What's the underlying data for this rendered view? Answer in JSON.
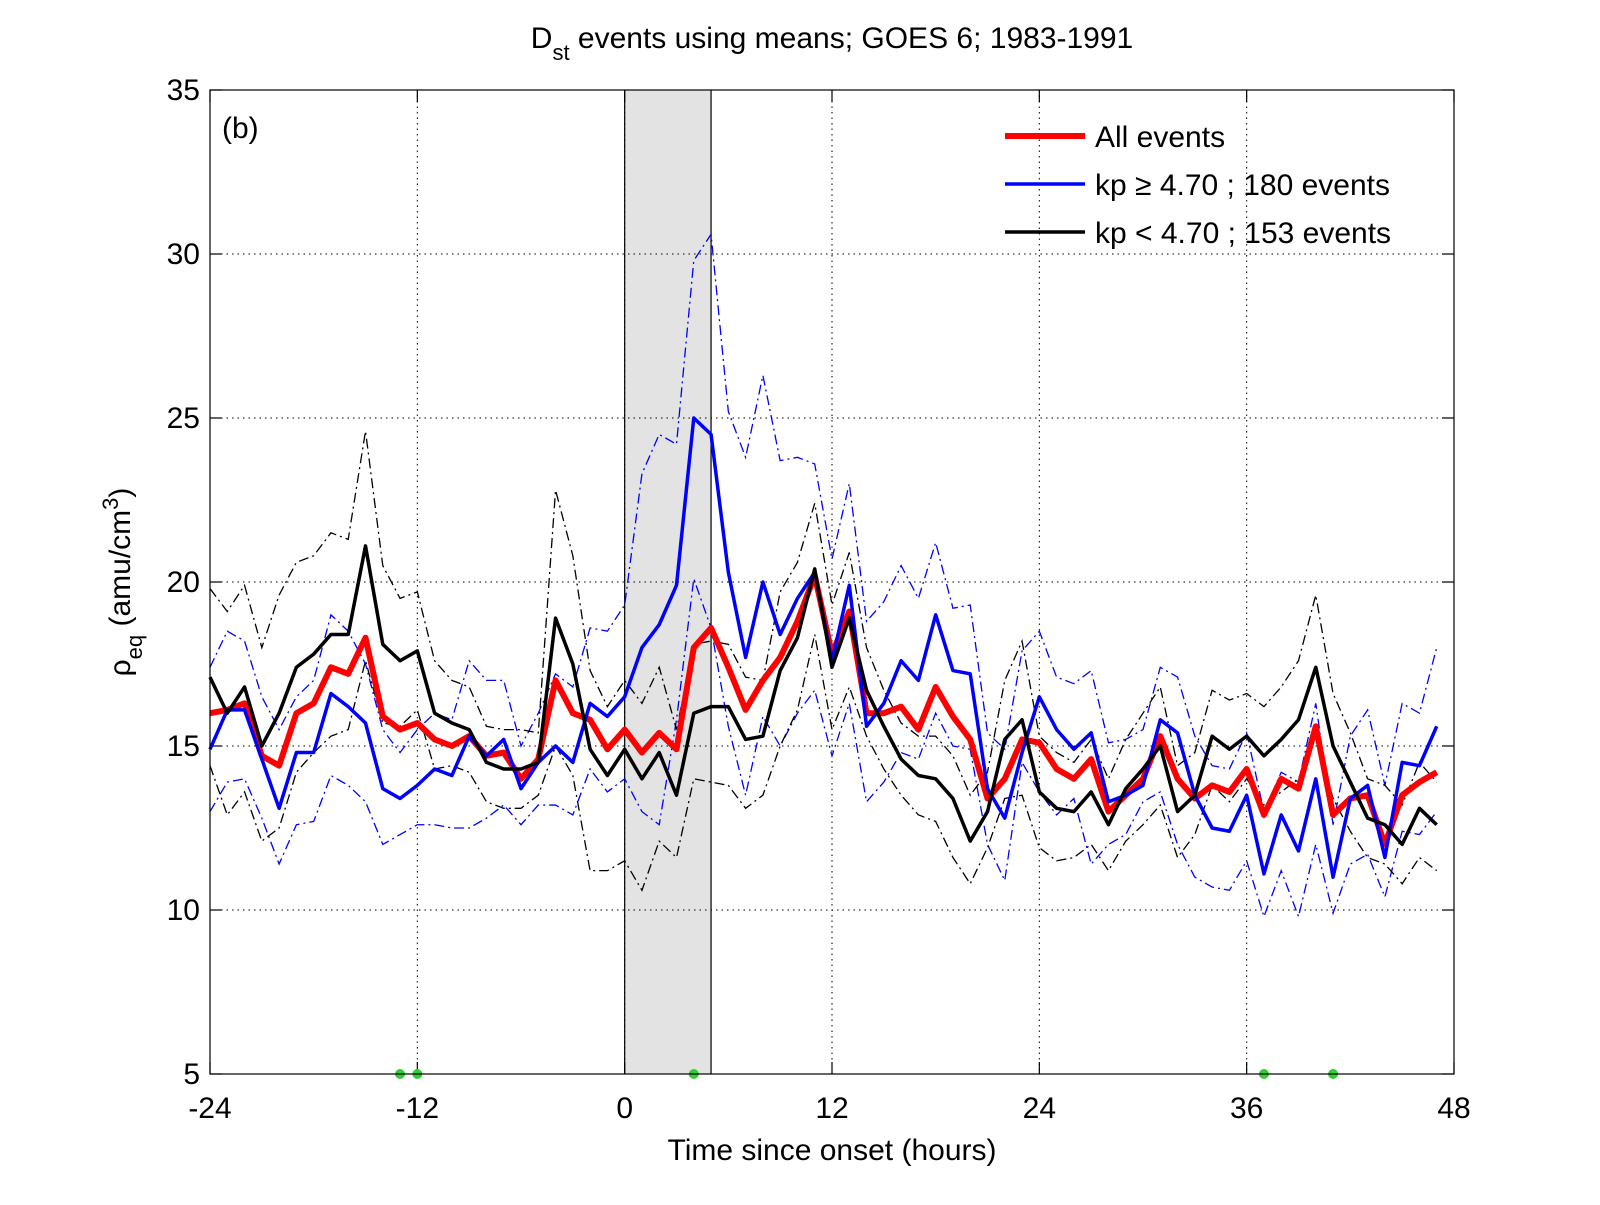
{
  "chart_data": {
    "type": "line",
    "title": {
      "main": "D",
      "sub": "st",
      "rest": " events using means; GOES 6; 1983-1991"
    },
    "xlabel": "Time since onset (hours)",
    "ylabel": {
      "main": "ρ",
      "sub": "eq",
      "rest": " (amu/cm",
      "sup": "3",
      "end": ")"
    },
    "annotation": "(b)",
    "x": [
      -24,
      -23,
      -22,
      -21,
      -20,
      -19,
      -18,
      -17,
      -16,
      -15,
      -14,
      -13,
      -12,
      -11,
      -10,
      -9,
      -8,
      -7,
      -6,
      -5,
      -4,
      -3,
      -2,
      -1,
      0,
      1,
      2,
      3,
      4,
      5,
      6,
      7,
      8,
      9,
      10,
      11,
      12,
      13,
      14,
      15,
      16,
      17,
      18,
      19,
      20,
      21,
      22,
      23,
      24,
      25,
      26,
      27,
      28,
      29,
      30,
      31,
      32,
      33,
      34,
      35,
      36,
      37,
      38,
      39,
      40,
      41,
      42,
      43,
      44,
      45,
      46,
      47
    ],
    "series": [
      {
        "name": "All events",
        "color": "#ff0000",
        "width": 6,
        "values": [
          16.0,
          16.1,
          16.3,
          14.7,
          14.4,
          16.0,
          16.3,
          17.4,
          17.2,
          18.3,
          15.9,
          15.5,
          15.7,
          15.2,
          15.0,
          15.3,
          14.7,
          14.8,
          14.0,
          14.6,
          17.0,
          16.0,
          15.8,
          14.9,
          15.5,
          14.8,
          15.4,
          14.9,
          18.0,
          18.6,
          17.4,
          16.1,
          17.0,
          17.7,
          18.8,
          20.2,
          17.8,
          19.1,
          16.0,
          16.0,
          16.2,
          15.5,
          16.8,
          15.9,
          15.2,
          13.4,
          14.0,
          15.2,
          15.1,
          14.3,
          14.0,
          14.6,
          13.0,
          13.5,
          14.0,
          15.3,
          14.0,
          13.4,
          13.8,
          13.6,
          14.3,
          12.9,
          14.0,
          13.7,
          15.6,
          12.9,
          13.4,
          13.5,
          12.0,
          13.5,
          13.9,
          14.2
        ]
      },
      {
        "name": "kp  ≥ 4.70 ; 180 events",
        "color": "#0000ff",
        "width": 3.5,
        "values": [
          14.9,
          16.1,
          16.1,
          14.6,
          13.1,
          14.8,
          14.8,
          16.6,
          16.2,
          15.7,
          13.7,
          13.4,
          13.8,
          14.3,
          14.1,
          15.3,
          14.7,
          15.2,
          13.7,
          14.5,
          15.0,
          14.5,
          16.3,
          15.9,
          16.5,
          18.0,
          18.7,
          19.9,
          25.0,
          24.5,
          20.3,
          17.7,
          20.0,
          18.4,
          19.5,
          20.3,
          17.6,
          19.9,
          15.6,
          16.3,
          17.6,
          17.0,
          19.0,
          17.3,
          17.2,
          13.7,
          12.8,
          14.8,
          16.5,
          15.5,
          14.9,
          15.4,
          13.3,
          13.5,
          13.8,
          15.8,
          15.4,
          13.5,
          12.5,
          12.4,
          13.5,
          11.1,
          12.9,
          11.8,
          14.0,
          11.0,
          13.4,
          13.8,
          11.6,
          14.5,
          14.4,
          15.6
        ]
      },
      {
        "name": "kp < 4.70 ; 153 events",
        "color": "#000000",
        "width": 3.5,
        "values": [
          17.1,
          16.0,
          16.8,
          15.0,
          16.0,
          17.4,
          17.8,
          18.4,
          18.4,
          21.1,
          18.1,
          17.6,
          17.9,
          16.0,
          15.7,
          15.5,
          14.5,
          14.3,
          14.3,
          14.5,
          18.9,
          17.5,
          14.9,
          14.1,
          14.9,
          14.0,
          14.8,
          13.5,
          16.0,
          16.2,
          16.2,
          15.2,
          15.3,
          17.3,
          18.3,
          20.4,
          17.4,
          18.9,
          16.7,
          15.6,
          14.6,
          14.1,
          14.0,
          13.4,
          12.1,
          13.0,
          15.2,
          15.8,
          13.6,
          13.1,
          13.0,
          13.6,
          12.6,
          13.7,
          14.3,
          15.0,
          13.0,
          13.5,
          15.3,
          14.9,
          15.3,
          14.7,
          15.2,
          15.8,
          17.4,
          15.0,
          13.9,
          12.8,
          12.6,
          12.0,
          13.1,
          12.6
        ]
      }
    ],
    "bounds": [
      {
        "color": "#0000ff",
        "upper": [
          17.4,
          18.5,
          18.2,
          16.5,
          15.5,
          16.5,
          17.0,
          19.0,
          18.5,
          17.5,
          15.5,
          14.8,
          15.5,
          16.0,
          15.8,
          17.6,
          17.0,
          17.0,
          15.0,
          16.0,
          17.2,
          16.8,
          18.6,
          18.5,
          19.3,
          23.3,
          24.5,
          24.2,
          29.8,
          30.6,
          25.2,
          23.8,
          26.3,
          23.7,
          23.8,
          23.6,
          20.7,
          23.0,
          18.8,
          19.4,
          20.5,
          19.5,
          21.2,
          19.2,
          19.3,
          15.4,
          14.9,
          17.9,
          18.5,
          17.1,
          16.9,
          17.3,
          15.1,
          15.2,
          15.5,
          17.4,
          17.1,
          15.3,
          14.4,
          14.3,
          15.4,
          13.0,
          14.2,
          13.9,
          16.3,
          12.6,
          15.3,
          16.1,
          13.8,
          16.3,
          16.0,
          18.0
        ],
        "lower": [
          13.0,
          13.9,
          14.0,
          12.8,
          11.4,
          12.6,
          12.7,
          14.1,
          13.8,
          13.3,
          12.0,
          12.3,
          12.6,
          12.6,
          12.5,
          12.5,
          12.8,
          13.2,
          12.6,
          13.2,
          13.2,
          12.9,
          14.3,
          13.6,
          14.0,
          13.0,
          12.6,
          15.8,
          20.1,
          18.6,
          15.6,
          13.5,
          15.9,
          15.0,
          16.0,
          16.7,
          14.7,
          16.3,
          13.3,
          13.9,
          14.8,
          14.6,
          16.0,
          15.0,
          14.9,
          12.0,
          10.9,
          14.5,
          13.6,
          12.9,
          13.4,
          11.4,
          12.0,
          12.3,
          13.3,
          13.6,
          12.0,
          11.0,
          10.7,
          10.6,
          11.5,
          9.8,
          11.2,
          9.8,
          12.0,
          9.9,
          11.4,
          11.7,
          10.4,
          12.4,
          12.3,
          13.0
        ]
      },
      {
        "color": "#000000",
        "upper": [
          19.8,
          19.1,
          19.9,
          18.0,
          19.6,
          20.6,
          20.8,
          21.5,
          21.3,
          24.6,
          20.5,
          19.5,
          19.7,
          17.6,
          17.0,
          16.8,
          15.6,
          15.5,
          15.5,
          15.4,
          22.8,
          20.8,
          17.3,
          16.2,
          17.0,
          16.3,
          17.4,
          15.5,
          18.1,
          18.2,
          18.1,
          17.1,
          17.0,
          19.7,
          20.6,
          22.4,
          19.3,
          20.9,
          18.0,
          16.7,
          15.7,
          15.3,
          15.3,
          14.7,
          13.5,
          14.2,
          17.0,
          18.2,
          15.3,
          14.8,
          14.5,
          15.2,
          14.0,
          15.2,
          16.0,
          16.8,
          14.4,
          14.8,
          16.7,
          16.4,
          16.6,
          16.2,
          16.8,
          17.6,
          19.6,
          16.6,
          15.4,
          14.0,
          13.8,
          13.2,
          14.5,
          13.9
        ],
        "lower": [
          14.4,
          12.9,
          13.6,
          12.1,
          12.5,
          14.2,
          14.8,
          15.3,
          15.5,
          17.6,
          15.7,
          15.6,
          16.1,
          14.3,
          14.4,
          14.2,
          13.3,
          13.1,
          13.1,
          13.5,
          15.0,
          14.1,
          11.2,
          11.2,
          11.5,
          10.6,
          12.1,
          11.6,
          14.0,
          13.9,
          13.8,
          13.1,
          13.5,
          15.0,
          16.1,
          18.4,
          15.5,
          16.8,
          15.3,
          14.3,
          13.5,
          12.9,
          12.7,
          11.6,
          10.8,
          11.9,
          13.4,
          13.5,
          11.9,
          11.5,
          11.6,
          12.0,
          11.2,
          12.1,
          12.6,
          13.2,
          11.6,
          12.3,
          13.8,
          13.3,
          14.0,
          13.2,
          13.6,
          14.0,
          15.3,
          13.4,
          12.4,
          11.6,
          11.4,
          10.8,
          11.6,
          11.2
        ]
      }
    ],
    "shade": [
      0,
      5
    ],
    "shade_color": "#e3e3e3",
    "markers": {
      "x": [
        -13,
        -12,
        4,
        37,
        41
      ],
      "color": "#33cc33"
    },
    "xlim": [
      -24,
      48
    ],
    "xticks": [
      -24,
      -12,
      0,
      12,
      24,
      36,
      48
    ],
    "ylim": [
      5,
      35
    ],
    "yticks": [
      5,
      10,
      15,
      20,
      25,
      30,
      35
    ],
    "grid": true,
    "legend": "upper right"
  }
}
